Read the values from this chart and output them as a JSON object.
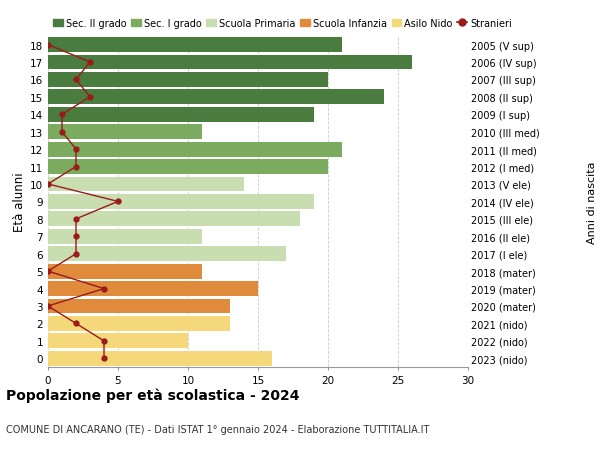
{
  "ages": [
    18,
    17,
    16,
    15,
    14,
    13,
    12,
    11,
    10,
    9,
    8,
    7,
    6,
    5,
    4,
    3,
    2,
    1,
    0
  ],
  "right_labels": [
    "2005 (V sup)",
    "2006 (IV sup)",
    "2007 (III sup)",
    "2008 (II sup)",
    "2009 (I sup)",
    "2010 (III med)",
    "2011 (II med)",
    "2012 (I med)",
    "2013 (V ele)",
    "2014 (IV ele)",
    "2015 (III ele)",
    "2016 (II ele)",
    "2017 (I ele)",
    "2018 (mater)",
    "2019 (mater)",
    "2020 (mater)",
    "2021 (nido)",
    "2022 (nido)",
    "2023 (nido)"
  ],
  "bar_values": [
    21,
    26,
    20,
    24,
    19,
    11,
    21,
    20,
    14,
    19,
    18,
    11,
    17,
    11,
    15,
    13,
    13,
    10,
    16
  ],
  "bar_colors": [
    "#4a7c3f",
    "#4a7c3f",
    "#4a7c3f",
    "#4a7c3f",
    "#4a7c3f",
    "#7aab5e",
    "#7aab5e",
    "#7aab5e",
    "#c8ddb0",
    "#c8ddb0",
    "#c8ddb0",
    "#c8ddb0",
    "#c8ddb0",
    "#e08a3c",
    "#e08a3c",
    "#e08a3c",
    "#f5d87a",
    "#f5d87a",
    "#f5d87a"
  ],
  "stranieri_values": [
    0,
    3,
    2,
    3,
    1,
    1,
    2,
    2,
    0,
    5,
    2,
    2,
    2,
    0,
    4,
    0,
    2,
    4,
    4
  ],
  "legend_labels": [
    "Sec. II grado",
    "Sec. I grado",
    "Scuola Primaria",
    "Scuola Infanzia",
    "Asilo Nido",
    "Stranieri"
  ],
  "legend_colors": [
    "#4a7c3f",
    "#7aab5e",
    "#c8ddb0",
    "#e08a3c",
    "#f5d87a",
    "#9b1a1a"
  ],
  "ylabel": "Età alunni",
  "ylabel_right": "Anni di nascita",
  "title": "Popolazione per età scolastica - 2024",
  "subtitle": "COMUNE DI ANCARANO (TE) - Dati ISTAT 1° gennaio 2024 - Elaborazione TUTTITALIA.IT",
  "xlim": [
    0,
    30
  ],
  "grid_color": "#cccccc"
}
